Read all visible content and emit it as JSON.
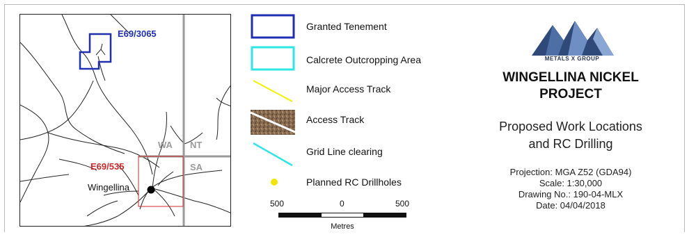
{
  "map": {
    "tenement_north": "E69/3065",
    "tenement_south": "E69/535",
    "town": "Wingellina",
    "states": {
      "wa": "WA",
      "nt": "NT",
      "sa": "SA"
    },
    "colors": {
      "granted_tenement": "#1f2fb0",
      "tenement_red": "#cc2a2a",
      "state_border": "#9a9a9a",
      "track": "#222222"
    }
  },
  "legend": {
    "items": [
      {
        "label": "Granted Tenement",
        "swatch": "blue-outline-box"
      },
      {
        "label": "Calcrete Outcropping Area",
        "swatch": "cyan-outline-box"
      },
      {
        "label": "Major Access Track",
        "swatch": "yellow-diagonal-line"
      },
      {
        "label": "Access Track",
        "swatch": "imagery-with-white-line"
      },
      {
        "label": "Grid Line clearing",
        "swatch": "cyan-diagonal-line"
      },
      {
        "label": "Planned RC Drillholes",
        "swatch": "yellow-dot"
      }
    ],
    "scalebar": {
      "left": "500",
      "mid": "0",
      "right": "500",
      "unit": "Metres"
    }
  },
  "title_block": {
    "brand": "METALS X GROUP",
    "project_line1": "WINGELLINA NICKEL",
    "project_line2": "PROJECT",
    "subtitle_line1": "Proposed Work Locations",
    "subtitle_line2": "and RC Drilling",
    "projection": "Projection:  MGA Z52 (GDA94)",
    "scale": "Scale: 1:30,000",
    "drawing_no": "Drawing No.: 190-04-MLX",
    "date": "Date: 04/04/2018"
  }
}
